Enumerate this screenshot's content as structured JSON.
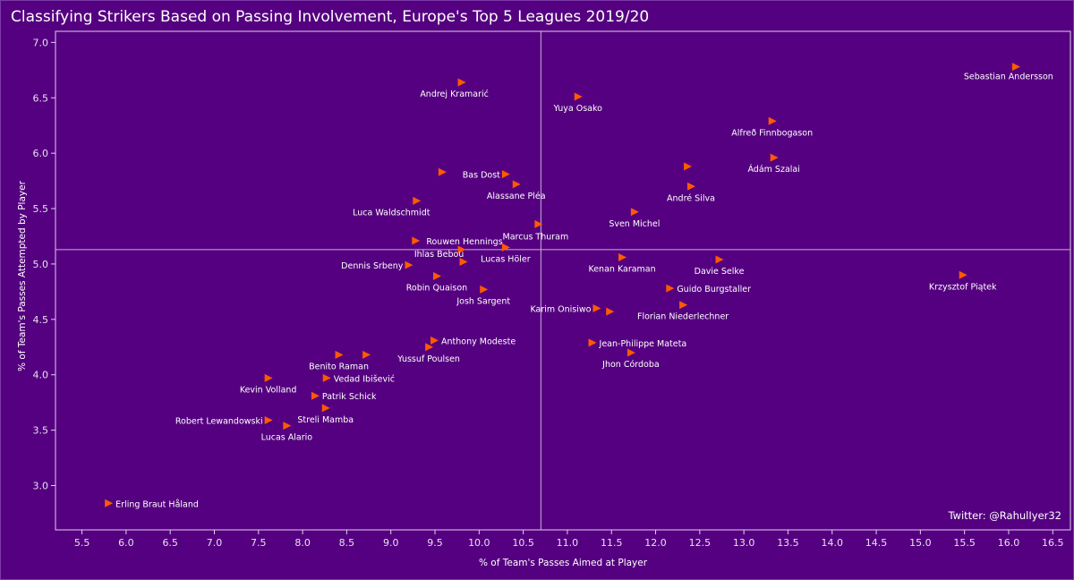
{
  "title": "Classifying Strikers Based on Passing Involvement, Europe's Top 5 Leagues 2019/20",
  "credit": "Twitter: @RahulIyer32",
  "colors": {
    "background": "#550080",
    "marker": "#ff5a00",
    "reference_line": "#c8b0dc",
    "text": "#ffffff"
  },
  "chart_data": {
    "type": "scatter",
    "marker": "triangle-right",
    "xlabel": "% of Team's Passes Aimed at Player",
    "ylabel": "% of Team's Passes Attempted by Player",
    "xlim": [
      5.2,
      16.7
    ],
    "ylim": [
      2.6,
      7.1
    ],
    "xticks": [
      "5.5",
      "6.0",
      "6.5",
      "7.0",
      "7.5",
      "8.0",
      "8.5",
      "9.0",
      "9.5",
      "10.0",
      "10.5",
      "11.0",
      "11.5",
      "12.0",
      "12.5",
      "13.0",
      "13.5",
      "14.0",
      "14.5",
      "15.0",
      "15.5",
      "16.0",
      "16.5"
    ],
    "yticks": [
      "3.0",
      "3.5",
      "4.0",
      "4.5",
      "5.0",
      "5.5",
      "6.0",
      "6.5",
      "7.0"
    ],
    "reference_lines": {
      "x": 10.7,
      "y": 5.13
    },
    "grid": false,
    "legend": "none",
    "points": [
      {
        "name": "Sebastian Andersson",
        "x": 16.08,
        "y": 6.78
      },
      {
        "name": "Andrej Kramarić",
        "x": 9.8,
        "y": 6.64
      },
      {
        "name": "Yuya Osako",
        "x": 11.12,
        "y": 6.51
      },
      {
        "name": "Alfreð Finnbogason",
        "x": 13.32,
        "y": 6.29
      },
      {
        "name": "Ádám Szalai",
        "x": 13.34,
        "y": 5.96
      },
      {
        "name": null,
        "x": 12.36,
        "y": 5.88
      },
      {
        "name": null,
        "x": 9.58,
        "y": 5.83
      },
      {
        "name": "Bas Dost",
        "x": 10.3,
        "y": 5.81
      },
      {
        "name": "Alassane Pléa",
        "x": 10.42,
        "y": 5.72
      },
      {
        "name": "André Silva",
        "x": 12.4,
        "y": 5.7
      },
      {
        "name": "Luca Waldschmidt",
        "x": 9.29,
        "y": 5.57
      },
      {
        "name": "Sven Michel",
        "x": 11.76,
        "y": 5.47
      },
      {
        "name": "Marcus Thuram",
        "x": 10.67,
        "y": 5.36
      },
      {
        "name": "Rouwen Hennings",
        "x": 9.28,
        "y": 5.21
      },
      {
        "name": "Ihlas Bebou",
        "x": 9.8,
        "y": 5.13
      },
      {
        "name": "Lucas Höler",
        "x": 10.3,
        "y": 5.15
      },
      {
        "name": "Kenan Karaman",
        "x": 11.62,
        "y": 5.06
      },
      {
        "name": "Davie Selke",
        "x": 12.72,
        "y": 5.04
      },
      {
        "name": null,
        "x": 9.82,
        "y": 5.02
      },
      {
        "name": "Dennis Srbeny",
        "x": 9.2,
        "y": 4.99
      },
      {
        "name": "Robin Quaison",
        "x": 9.52,
        "y": 4.89
      },
      {
        "name": "Krzysztof Piątek",
        "x": 15.48,
        "y": 4.9
      },
      {
        "name": "Josh Sargent",
        "x": 10.05,
        "y": 4.77
      },
      {
        "name": "Guido Burgstaller",
        "x": 12.16,
        "y": 4.78
      },
      {
        "name": "Florian Niederlechner",
        "x": 12.31,
        "y": 4.63
      },
      {
        "name": "Karim Onisiwo",
        "x": 11.33,
        "y": 4.6
      },
      {
        "name": null,
        "x": 11.48,
        "y": 4.57
      },
      {
        "name": "Anthony Modeste",
        "x": 9.49,
        "y": 4.31
      },
      {
        "name": "Jean-Philippe Mateta",
        "x": 11.28,
        "y": 4.29
      },
      {
        "name": "Yussuf Poulsen",
        "x": 9.43,
        "y": 4.25
      },
      {
        "name": "Jhon Córdoba",
        "x": 11.72,
        "y": 4.2
      },
      {
        "name": "Benito Raman",
        "x": 8.41,
        "y": 4.18
      },
      {
        "name": null,
        "x": 8.72,
        "y": 4.18
      },
      {
        "name": "Kevin Volland",
        "x": 7.61,
        "y": 3.97
      },
      {
        "name": "Vedad Ibišević",
        "x": 8.27,
        "y": 3.97
      },
      {
        "name": "Patrik Schick",
        "x": 8.14,
        "y": 3.81
      },
      {
        "name": "Streli Mamba",
        "x": 8.26,
        "y": 3.7
      },
      {
        "name": "Robert Lewandowski",
        "x": 7.61,
        "y": 3.59
      },
      {
        "name": "Lucas Alario",
        "x": 7.82,
        "y": 3.54
      },
      {
        "name": "Erling Braut Håland",
        "x": 5.8,
        "y": 2.84
      }
    ]
  }
}
